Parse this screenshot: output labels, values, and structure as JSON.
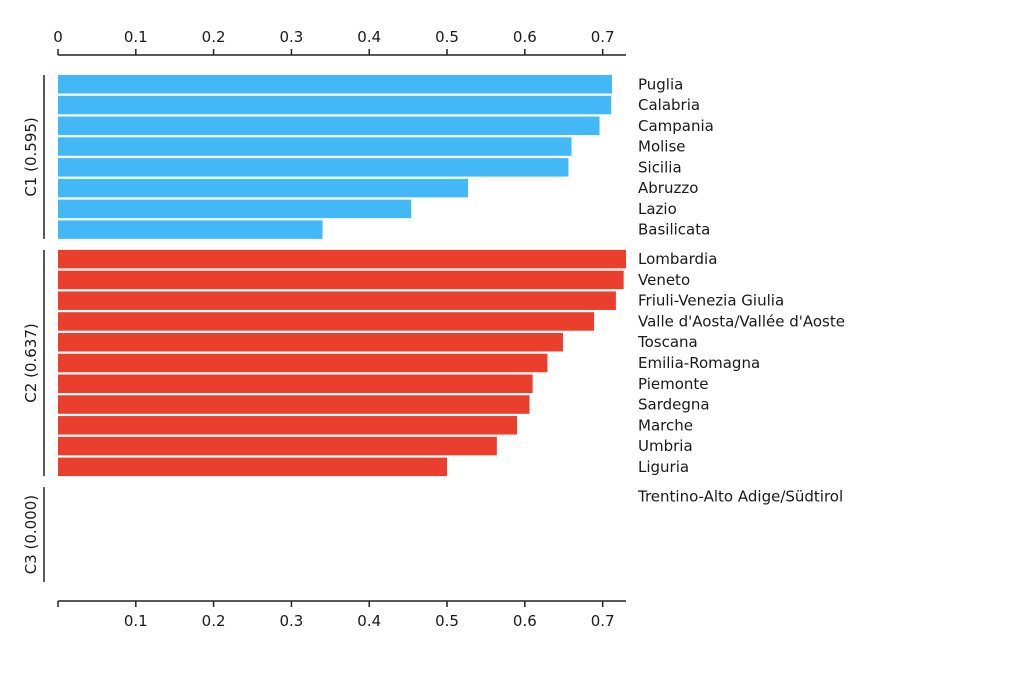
{
  "chart_data": {
    "type": "bar",
    "orientation": "horizontal",
    "xlim": [
      0,
      0.73
    ],
    "ticks_top": [
      "0",
      "0.1",
      "0.2",
      "0.3",
      "0.4",
      "0.5",
      "0.6",
      "0.7"
    ],
    "ticks_bottom": [
      "0.1",
      "0.2",
      "0.3",
      "0.4",
      "0.5",
      "0.6",
      "0.7"
    ],
    "grid": false,
    "groups": [
      {
        "label": "C1 (0.595)",
        "color": "#42b8f7",
        "bars": [
          {
            "name": "Puglia",
            "value": 0.712
          },
          {
            "name": "Calabria",
            "value": 0.711
          },
          {
            "name": "Campania",
            "value": 0.696
          },
          {
            "name": "Molise",
            "value": 0.66
          },
          {
            "name": "Sicilia",
            "value": 0.656
          },
          {
            "name": "Abruzzo",
            "value": 0.527
          },
          {
            "name": "Lazio",
            "value": 0.454
          },
          {
            "name": "Basilicata",
            "value": 0.34
          }
        ]
      },
      {
        "label": "C2 (0.637)",
        "color": "#eb3f2e",
        "bars": [
          {
            "name": "Lombardia",
            "value": 0.73
          },
          {
            "name": "Veneto",
            "value": 0.727
          },
          {
            "name": "Friuli-Venezia Giulia",
            "value": 0.717
          },
          {
            "name": "Valle d'Aosta/Vallée d'Aoste",
            "value": 0.689
          },
          {
            "name": "Toscana",
            "value": 0.649
          },
          {
            "name": "Emilia-Romagna",
            "value": 0.629
          },
          {
            "name": "Piemonte",
            "value": 0.61
          },
          {
            "name": "Sardegna",
            "value": 0.606
          },
          {
            "name": "Marche",
            "value": 0.59
          },
          {
            "name": "Umbria",
            "value": 0.564
          },
          {
            "name": "Liguria",
            "value": 0.5
          }
        ]
      },
      {
        "label": "C3 (0.000)",
        "color": "#888888",
        "bars": [
          {
            "name": "Trentino-Alto Adige/Südtirol",
            "value": 0.0
          }
        ]
      }
    ]
  }
}
